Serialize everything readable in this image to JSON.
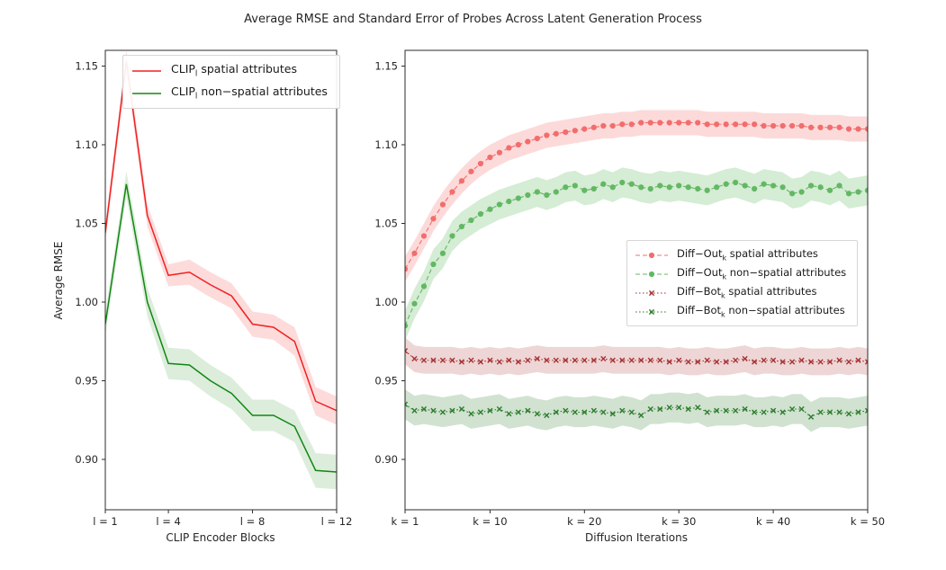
{
  "title": "Average RMSE and Standard Error of Probes Across Latent Generation Process",
  "ylabel": "Average RMSE",
  "colors": {
    "clip_spatial": "#f02121",
    "clip_nonspatial": "#128712",
    "diffout_spatial": "#f26d6d",
    "diffout_nonspatial": "#63b863",
    "diffbot_spatial": "#a83232",
    "diffbot_nonspatial": "#2e7d2e",
    "axis": "#2b2b2b",
    "text": "#262626"
  },
  "chart_data": [
    {
      "id": "clip-panel",
      "type": "line",
      "xlabel": "CLIP Encoder Blocks",
      "xlim": [
        1,
        12
      ],
      "ylim": [
        0.868,
        1.16
      ],
      "grid": false,
      "legend_position": "upper left",
      "yticks": [
        1.15,
        1.1,
        1.05,
        1.0,
        0.95,
        0.9
      ],
      "ytick_labels": [
        "1.15",
        "1.10",
        "1.05",
        "1.00",
        "0.95",
        "0.90"
      ],
      "xticks": [
        1,
        4,
        8,
        12
      ],
      "xtick_labels": [
        "l = 1",
        "l = 4",
        "l = 8",
        "l = 12"
      ],
      "x": [
        1,
        2,
        3,
        4,
        5,
        6,
        7,
        8,
        9,
        10,
        11,
        12
      ],
      "series": [
        {
          "label_base": "CLIP",
          "label_sub": "l",
          "label_rest": " spatial attributes",
          "color": "#f02121",
          "band_color": "rgba(240,33,33,0.16)",
          "line_style": "solid",
          "marker": "none",
          "line_width": 1.5,
          "values": [
            1.044,
            1.153,
            1.055,
            1.017,
            1.019,
            1.011,
            1.004,
            0.986,
            0.984,
            0.975,
            0.937,
            0.931
          ],
          "band_halfwidth": [
            0.006,
            0.007,
            0.007,
            0.007,
            0.008,
            0.008,
            0.008,
            0.008,
            0.008,
            0.009,
            0.009,
            0.009
          ]
        },
        {
          "label_base": "CLIP",
          "label_sub": "l",
          "label_rest": " non−spatial attributes",
          "color": "#128712",
          "band_color": "rgba(18,135,18,0.15)",
          "line_style": "solid",
          "marker": "none",
          "line_width": 1.5,
          "values": [
            0.986,
            1.075,
            1.0,
            0.961,
            0.96,
            0.95,
            0.942,
            0.928,
            0.928,
            0.921,
            0.893,
            0.892
          ],
          "band_halfwidth": [
            0.007,
            0.008,
            0.009,
            0.01,
            0.01,
            0.01,
            0.01,
            0.01,
            0.01,
            0.01,
            0.011,
            0.011
          ]
        }
      ]
    },
    {
      "id": "diffusion-panel",
      "type": "line",
      "xlabel": "Diffusion Iterations",
      "xlim": [
        1,
        50
      ],
      "ylim": [
        0.868,
        1.16
      ],
      "grid": false,
      "legend_position": "center right",
      "yticks": [
        1.15,
        1.1,
        1.05,
        1.0,
        0.95,
        0.9
      ],
      "ytick_labels": [
        "1.15",
        "1.10",
        "1.05",
        "1.00",
        "0.95",
        "0.90"
      ],
      "xticks": [
        1,
        10,
        20,
        30,
        40,
        50
      ],
      "xtick_labels": [
        "k = 1",
        "k = 10",
        "k = 20",
        "k = 30",
        "k = 40",
        "k = 50"
      ],
      "x": [
        1,
        2,
        3,
        4,
        5,
        6,
        7,
        8,
        9,
        10,
        11,
        12,
        13,
        14,
        15,
        16,
        17,
        18,
        19,
        20,
        21,
        22,
        23,
        24,
        25,
        26,
        27,
        28,
        29,
        30,
        31,
        32,
        33,
        34,
        35,
        36,
        37,
        38,
        39,
        40,
        41,
        42,
        43,
        44,
        45,
        46,
        47,
        48,
        49,
        50
      ],
      "series": [
        {
          "label_base": "Diff−Out",
          "label_sub": "k",
          "label_rest": " spatial attributes",
          "color": "#f26d6d",
          "band_color": "rgba(242,109,109,0.25)",
          "line_style": "dashed",
          "marker": "circle",
          "line_width": 1.1,
          "values": [
            1.021,
            1.031,
            1.042,
            1.053,
            1.062,
            1.07,
            1.077,
            1.083,
            1.088,
            1.092,
            1.095,
            1.098,
            1.1,
            1.102,
            1.104,
            1.106,
            1.107,
            1.108,
            1.109,
            1.11,
            1.111,
            1.112,
            1.112,
            1.113,
            1.113,
            1.114,
            1.114,
            1.114,
            1.114,
            1.114,
            1.114,
            1.114,
            1.113,
            1.113,
            1.113,
            1.113,
            1.113,
            1.113,
            1.112,
            1.112,
            1.112,
            1.112,
            1.112,
            1.111,
            1.111,
            1.111,
            1.111,
            1.11,
            1.11,
            1.11
          ],
          "band_halfwidth": 0.008
        },
        {
          "label_base": "Diff−Out",
          "label_sub": "k",
          "label_rest": " non−spatial attributes",
          "color": "#63b863",
          "band_color": "rgba(99,184,99,0.27)",
          "line_style": "dashed",
          "marker": "circle",
          "line_width": 1.1,
          "values": [
            0.985,
            0.999,
            1.01,
            1.024,
            1.031,
            1.042,
            1.048,
            1.052,
            1.056,
            1.059,
            1.062,
            1.064,
            1.066,
            1.068,
            1.07,
            1.068,
            1.07,
            1.073,
            1.074,
            1.071,
            1.072,
            1.075,
            1.073,
            1.076,
            1.075,
            1.073,
            1.072,
            1.074,
            1.073,
            1.074,
            1.073,
            1.072,
            1.071,
            1.073,
            1.075,
            1.076,
            1.074,
            1.072,
            1.075,
            1.074,
            1.073,
            1.069,
            1.07,
            1.074,
            1.073,
            1.071,
            1.074,
            1.069,
            1.07,
            1.071
          ],
          "band_halfwidth": 0.0095
        },
        {
          "label_base": "Diff−Bot",
          "label_sub": "k",
          "label_rest": " spatial attributes",
          "color": "#a83232",
          "band_color": "rgba(168,50,50,0.20)",
          "line_style": "dotted",
          "marker": "x",
          "line_width": 1.1,
          "values": [
            0.969,
            0.964,
            0.963,
            0.963,
            0.963,
            0.963,
            0.962,
            0.963,
            0.962,
            0.963,
            0.962,
            0.963,
            0.962,
            0.963,
            0.964,
            0.963,
            0.963,
            0.963,
            0.963,
            0.963,
            0.963,
            0.964,
            0.963,
            0.963,
            0.963,
            0.963,
            0.963,
            0.963,
            0.962,
            0.963,
            0.962,
            0.962,
            0.963,
            0.962,
            0.962,
            0.963,
            0.964,
            0.962,
            0.963,
            0.963,
            0.962,
            0.962,
            0.963,
            0.962,
            0.962,
            0.962,
            0.963,
            0.962,
            0.963,
            0.962
          ],
          "band_halfwidth": 0.0085
        },
        {
          "label_base": "Diff−Bot",
          "label_sub": "k",
          "label_rest": " non−spatial attributes",
          "color": "#2e7d2e",
          "band_color": "rgba(46,125,46,0.22)",
          "line_style": "dotted",
          "marker": "x",
          "line_width": 1.1,
          "values": [
            0.935,
            0.931,
            0.932,
            0.931,
            0.93,
            0.931,
            0.932,
            0.929,
            0.93,
            0.931,
            0.932,
            0.929,
            0.93,
            0.931,
            0.929,
            0.928,
            0.93,
            0.931,
            0.93,
            0.93,
            0.931,
            0.93,
            0.929,
            0.931,
            0.93,
            0.928,
            0.932,
            0.932,
            0.933,
            0.933,
            0.932,
            0.933,
            0.93,
            0.931,
            0.931,
            0.931,
            0.932,
            0.93,
            0.93,
            0.931,
            0.93,
            0.932,
            0.932,
            0.927,
            0.93,
            0.93,
            0.93,
            0.929,
            0.93,
            0.931
          ],
          "band_halfwidth": 0.0095
        }
      ]
    }
  ]
}
